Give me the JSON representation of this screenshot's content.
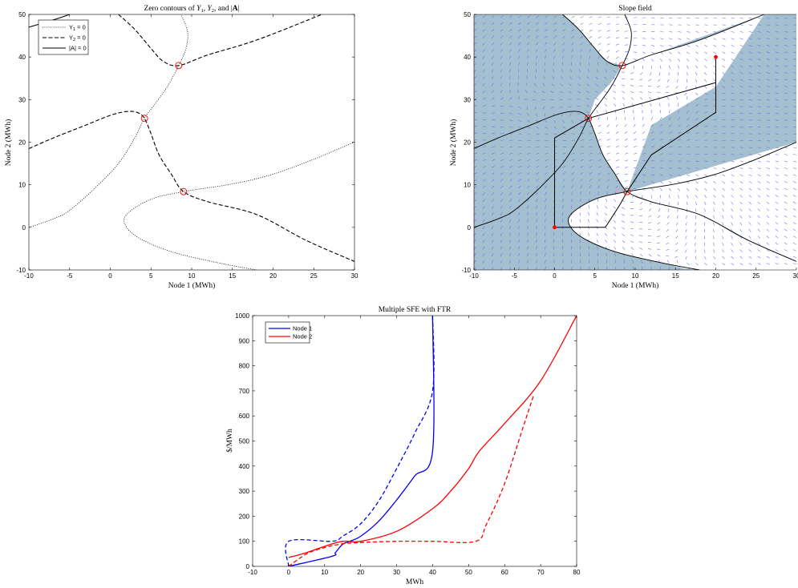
{
  "colors": {
    "blue": "#0000ff",
    "red": "#ff0000",
    "shade": "#a4bfcf",
    "arrow": "#6f6ff0",
    "black": "#000000"
  },
  "chart_data": [
    {
      "type": "line",
      "title": "Zero contours of Y1, Y2, and |A|",
      "xlabel": "Node 1 (MWh)",
      "ylabel": "Node 2 (MWh)",
      "xlim": [
        -10,
        30
      ],
      "ylim": [
        -10,
        50
      ],
      "xticks": [
        "-10",
        "-5",
        "0",
        "5",
        "10",
        "15",
        "20",
        "25",
        "30"
      ],
      "yticks": [
        "-10",
        "0",
        "10",
        "20",
        "30",
        "40",
        "50"
      ],
      "legend": {
        "position": "top-left",
        "entries": [
          "Y1 = 0",
          "Y2 = 0",
          "|A| = 0"
        ]
      },
      "series": [
        {
          "name": "Y1 = 0",
          "style": "dotted",
          "segments": [
            [
              [
                -10,
                0
              ],
              [
                -7,
                2
              ],
              [
                -5,
                4
              ],
              [
                -2,
                9
              ],
              [
                1,
                15
              ],
              [
                3,
                21
              ],
              [
                4.2,
                25.6
              ],
              [
                5.5,
                29
              ],
              [
                7,
                33
              ],
              [
                8.4,
                38
              ],
              [
                9.3,
                42
              ],
              [
                9.5,
                46
              ],
              [
                8.7,
                50
              ]
            ],
            [
              [
                30,
                20
              ],
              [
                25,
                16
              ],
              [
                20,
                12.5
              ],
              [
                15,
                10.2
              ],
              [
                9,
                8.4
              ],
              [
                5,
                6.6
              ],
              [
                2,
                3
              ],
              [
                2,
                0
              ],
              [
                4,
                -3
              ],
              [
                8,
                -6
              ],
              [
                14,
                -8.6
              ],
              [
                18,
                -10
              ]
            ]
          ]
        },
        {
          "name": "Y2 = 0",
          "style": "dashed",
          "segments": [
            [
              [
                -10,
                18.5
              ],
              [
                -7,
                21
              ],
              [
                -3,
                24
              ],
              [
                0,
                26.3
              ],
              [
                2,
                27.2
              ],
              [
                3.3,
                27
              ],
              [
                4.2,
                25.6
              ],
              [
                5,
                22
              ],
              [
                6,
                17
              ],
              [
                7.5,
                12.5
              ],
              [
                9,
                8.4
              ],
              [
                12,
                6
              ],
              [
                18,
                3
              ],
              [
                24,
                -3
              ],
              [
                30,
                -8
              ]
            ],
            [
              [
                1,
                50
              ],
              [
                3,
                46.5
              ],
              [
                5,
                42
              ],
              [
                6.5,
                39
              ],
              [
                8.4,
                38
              ],
              [
                12,
                40.5
              ],
              [
                18,
                44
              ],
              [
                26,
                50
              ]
            ]
          ]
        },
        {
          "name": "|A| = 0",
          "style": "solid",
          "segments": [
            [
              [
                -10,
                47
              ],
              [
                -7,
                48.7
              ],
              [
                -5,
                50
              ]
            ]
          ]
        }
      ],
      "markers": [
        [
          8.4,
          38
        ],
        [
          4.2,
          25.6
        ],
        [
          9,
          8.4
        ]
      ]
    },
    {
      "type": "quiver",
      "title": "Slope field",
      "xlabel": "Node 1 (MWh)",
      "ylabel": "Node 2 (MWh)",
      "xlim": [
        -10,
        30
      ],
      "ylim": [
        -10,
        50
      ],
      "xticks": [
        "-10",
        "-5",
        "0",
        "5",
        "10",
        "15",
        "20",
        "25",
        "30"
      ],
      "yticks": [
        "-10",
        "0",
        "10",
        "20",
        "30",
        "40",
        "50"
      ],
      "markers": [
        [
          8.4,
          38
        ],
        [
          4.2,
          25.6
        ],
        [
          9,
          8.4
        ]
      ],
      "points": [
        [
          0,
          0
        ],
        [
          20,
          40
        ]
      ],
      "paths": [
        [
          [
            0,
            0
          ],
          [
            0,
            21
          ],
          [
            4.2,
            25.6
          ],
          [
            20,
            34
          ],
          [
            20,
            40
          ]
        ],
        [
          [
            0,
            0
          ],
          [
            6.3,
            0
          ],
          [
            8,
            5
          ],
          [
            9,
            8.4
          ]
        ],
        [
          [
            20,
            40
          ],
          [
            20,
            27
          ],
          [
            12,
            17
          ],
          [
            9,
            8.4
          ]
        ]
      ]
    },
    {
      "type": "line",
      "title": "Multiple SFE with FTR",
      "xlabel": "MWh",
      "ylabel": "$/MWh",
      "xlim": [
        -10,
        80
      ],
      "ylim": [
        0,
        1000
      ],
      "xticks": [
        "-10",
        "0",
        "10",
        "20",
        "30",
        "40",
        "50",
        "60",
        "70",
        "80"
      ],
      "yticks": [
        "0",
        "100",
        "200",
        "300",
        "400",
        "500",
        "600",
        "700",
        "800",
        "900",
        "1000"
      ],
      "legend": {
        "position": "top-left",
        "entries": [
          "Node 1",
          "Node 2"
        ]
      },
      "series": [
        {
          "name": "Node 1",
          "color": "blue",
          "style": "solid",
          "x": [
            0,
            12,
            13,
            15,
            17,
            20,
            25,
            30,
            35,
            40,
            40
          ],
          "y": [
            0,
            40,
            55,
            88,
            100,
            120,
            180,
            265,
            360,
            460,
            1000
          ]
        },
        {
          "name": "Node 1",
          "color": "blue",
          "style": "dashed",
          "x": [
            0,
            0,
            12,
            15,
            20,
            25,
            30,
            35,
            40,
            40
          ],
          "y": [
            0,
            100,
            100,
            120,
            170,
            260,
            390,
            530,
            700,
            1000
          ]
        },
        {
          "name": "Node 2",
          "color": "red",
          "style": "solid",
          "x": [
            0,
            5,
            10,
            15,
            20,
            30,
            40,
            45,
            50,
            53,
            60,
            70,
            80
          ],
          "y": [
            35,
            55,
            80,
            100,
            100,
            140,
            230,
            300,
            390,
            460,
            570,
            740,
            1000
          ]
        },
        {
          "name": "Node 2",
          "color": "red",
          "style": "dashed",
          "x": [
            0,
            5,
            10,
            15,
            20,
            30,
            40,
            52,
            55,
            60,
            65,
            68
          ],
          "y": [
            0,
            50,
            75,
            90,
            95,
            100,
            100,
            100,
            170,
            330,
            550,
            680
          ]
        }
      ]
    }
  ]
}
